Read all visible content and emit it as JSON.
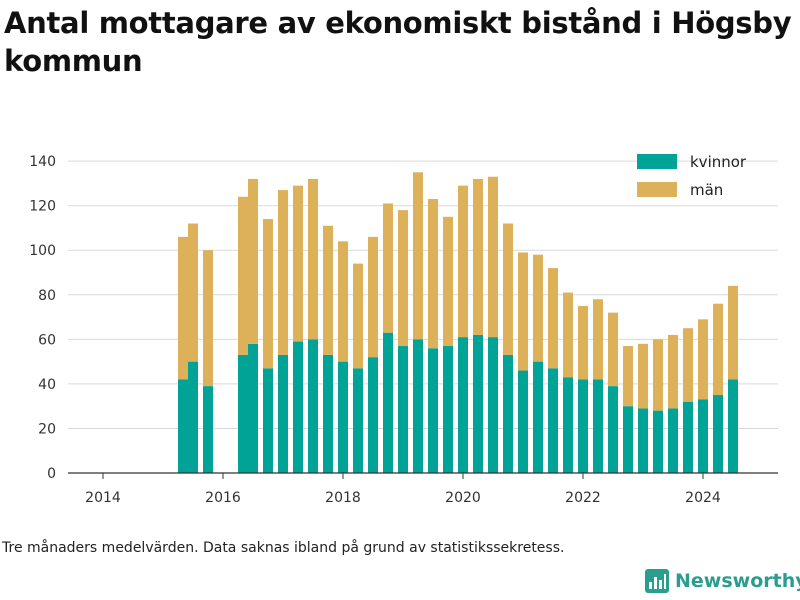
{
  "title": "Antal mottagare av ekonomiskt bistånd i Högsby kommun",
  "caption": "Tre månaders medelvärden. Data saknas ibland på grund av statistikssekretess.",
  "brand": {
    "name": "Newsworthy",
    "logo_icon": "bar-chart-logo-icon"
  },
  "colors": {
    "kvinnor": "#00a396",
    "man": "#ddb05a",
    "grid": "#d9d9d9",
    "axis": "#333333"
  },
  "chart_data": {
    "type": "bar",
    "stacked": true,
    "x_ticks": [
      "2014",
      "2016",
      "2018",
      "2020",
      "2022",
      "2024"
    ],
    "y_ticks": [
      "0",
      "20",
      "40",
      "60",
      "80",
      "100",
      "120",
      "140"
    ],
    "ylim": [
      0,
      145
    ],
    "xlim": [
      "2013-06",
      "2025-04"
    ],
    "grid": "horizontal",
    "legend_position": "top-right",
    "categories": [
      "2015-05",
      "2015-07",
      "2015-10",
      "2016-05",
      "2016-07",
      "2016-10",
      "2017-01",
      "2017-04",
      "2017-07",
      "2017-10",
      "2018-01",
      "2018-04",
      "2018-07",
      "2018-10",
      "2019-01",
      "2019-04",
      "2019-07",
      "2019-10",
      "2020-01",
      "2020-04",
      "2020-07",
      "2020-10",
      "2021-01",
      "2021-04",
      "2021-07",
      "2021-10",
      "2022-01",
      "2022-04",
      "2022-07",
      "2022-10",
      "2023-01",
      "2023-04",
      "2023-07",
      "2023-10",
      "2024-01",
      "2024-04",
      "2024-07"
    ],
    "series": [
      {
        "name": "kvinnor",
        "values": [
          42,
          50,
          39,
          53,
          58,
          47,
          53,
          59,
          60,
          53,
          50,
          47,
          52,
          63,
          57,
          60,
          56,
          57,
          61,
          62,
          61,
          53,
          46,
          50,
          47,
          43,
          42,
          42,
          39,
          30,
          29,
          28,
          29,
          32,
          33,
          35,
          42
        ]
      },
      {
        "name": "män",
        "values": [
          64,
          62,
          61,
          71,
          74,
          67,
          74,
          70,
          72,
          58,
          54,
          47,
          54,
          58,
          61,
          75,
          67,
          58,
          68,
          70,
          72,
          59,
          53,
          48,
          45,
          38,
          33,
          36,
          33,
          27,
          29,
          32,
          33,
          33,
          36,
          41,
          42
        ]
      }
    ]
  }
}
